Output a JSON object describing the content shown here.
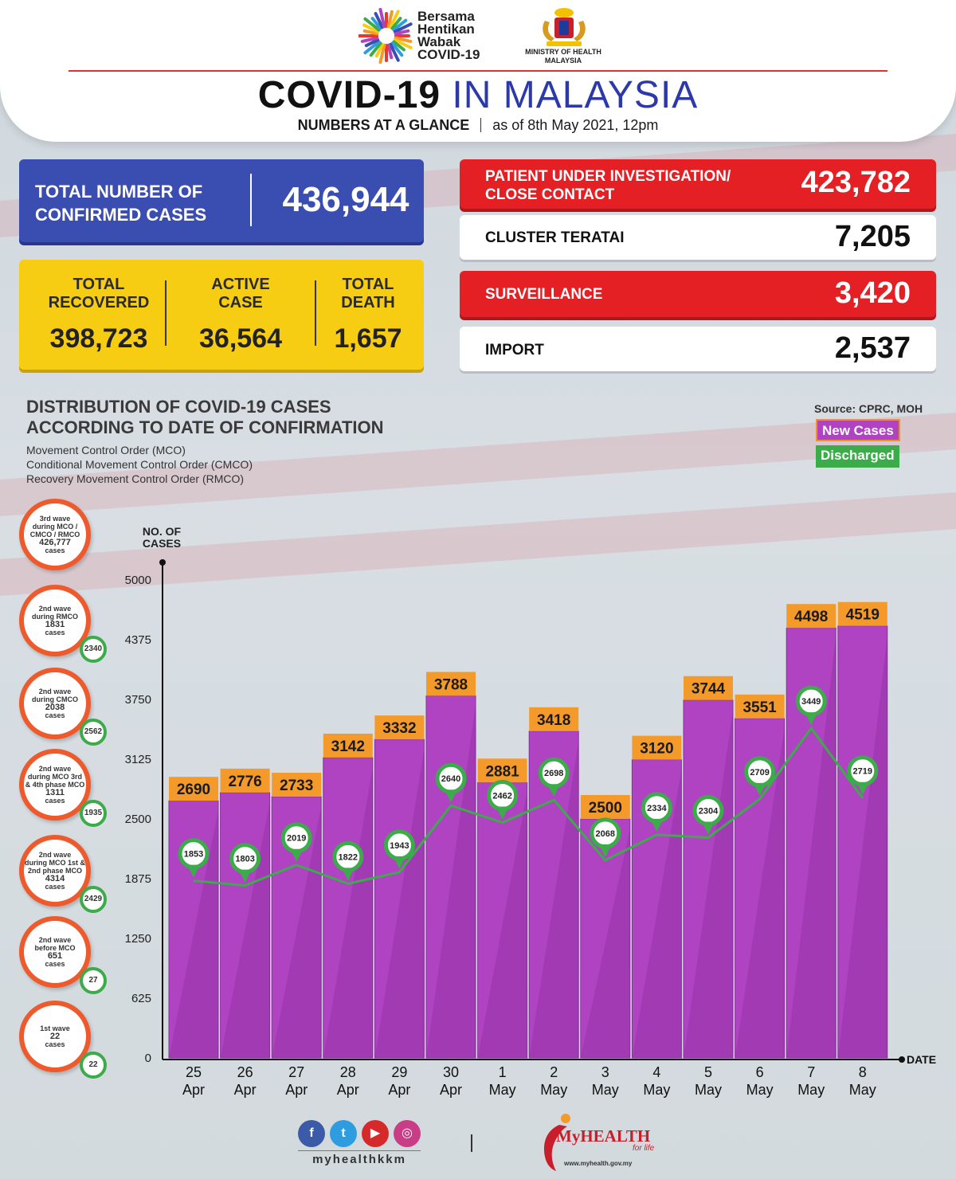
{
  "header": {
    "logo_lines": [
      "Bersama",
      "Hentikan",
      "Wabak",
      "COVID-19"
    ],
    "ministry_lines": [
      "MINISTRY OF HEALTH",
      "MALAYSIA"
    ],
    "title_part1": "COVID-19",
    "title_part2": "IN MALAYSIA",
    "subtitle_part1": "NUMBERS AT A GLANCE",
    "subtitle_part2": "as of 8th May 2021, 12pm"
  },
  "stats": {
    "confirmed_label_1": "TOTAL NUMBER OF",
    "confirmed_label_2": "CONFIRMED CASES",
    "confirmed_value": "436,944",
    "recovered_label_1": "TOTAL",
    "recovered_label_2": "RECOVERED",
    "recovered_value": "398,723",
    "active_label_1": "ACTIVE",
    "active_label_2": "CASE",
    "active_value": "36,564",
    "death_label_1": "TOTAL",
    "death_label_2": "DEATH",
    "death_value": "1,657",
    "pui_label_1": "PATIENT UNDER INVESTIGATION/",
    "pui_label_2": "CLOSE CONTACT",
    "pui_value": "423,782",
    "cluster_label": "CLUSTER TERATAI",
    "cluster_value": "7,205",
    "surveillance_label": "SURVEILLANCE",
    "surveillance_value": "3,420",
    "import_label": "IMPORT",
    "import_value": "2,537"
  },
  "distribution": {
    "title_1": "DISTRIBUTION OF COVID-19 CASES",
    "title_2": "ACCORDING TO DATE OF CONFIRMATION",
    "note_1": "Movement Control Order (MCO)",
    "note_2": "Conditional Movement Control Order (CMCO)",
    "note_3": "Recovery Movement Control Order (RMCO)",
    "source": "Source: CPRC, MOH",
    "legend_new": "New Cases",
    "legend_discharged": "Discharged"
  },
  "waves": [
    {
      "lines": [
        "3rd wave",
        "during MCO /",
        "CMCO / RMCO"
      ],
      "count": "426,777",
      "unit": "cases",
      "badge": ""
    },
    {
      "lines": [
        "2nd wave",
        "during RMCO"
      ],
      "count": "1831",
      "unit": "cases",
      "badge": "2340"
    },
    {
      "lines": [
        "2nd wave",
        "during CMCO"
      ],
      "count": "2038",
      "unit": "cases",
      "badge": "2562"
    },
    {
      "lines": [
        "2nd wave",
        "during MCO 3rd",
        "& 4th phase MCO"
      ],
      "count": "1311",
      "unit": "cases",
      "badge": "1935"
    },
    {
      "lines": [
        "2nd wave",
        "during MCO 1st &",
        "2nd phase MCO"
      ],
      "count": "4314",
      "unit": "cases",
      "badge": "2429"
    },
    {
      "lines": [
        "2nd wave",
        "before MCO"
      ],
      "count": "651",
      "unit": "cases",
      "badge": "27"
    },
    {
      "lines": [
        "1st wave"
      ],
      "count": "22",
      "unit": "cases",
      "badge": "22"
    }
  ],
  "chart_data": {
    "type": "bar",
    "ylabel": "NO. OF CASES",
    "xlabel": "DATE",
    "ylim": [
      0,
      5000
    ],
    "yticks": [
      0,
      625,
      1250,
      1875,
      2500,
      3125,
      3750,
      4375,
      5000
    ],
    "categories": [
      [
        "25",
        "Apr"
      ],
      [
        "26",
        "Apr"
      ],
      [
        "27",
        "Apr"
      ],
      [
        "28",
        "Apr"
      ],
      [
        "29",
        "Apr"
      ],
      [
        "30",
        "Apr"
      ],
      [
        "1",
        "May"
      ],
      [
        "2",
        "May"
      ],
      [
        "3",
        "May"
      ],
      [
        "4",
        "May"
      ],
      [
        "5",
        "May"
      ],
      [
        "6",
        "May"
      ],
      [
        "7",
        "May"
      ],
      [
        "8",
        "May"
      ]
    ],
    "series": [
      {
        "name": "New Cases",
        "type": "bar",
        "values": [
          2690,
          2776,
          2733,
          3142,
          3332,
          3788,
          2881,
          3418,
          2500,
          3120,
          3744,
          3551,
          4498,
          4519
        ]
      },
      {
        "name": "Discharged",
        "type": "line",
        "values": [
          1853,
          1803,
          2019,
          1822,
          1943,
          2640,
          2462,
          2698,
          2068,
          2334,
          2304,
          2709,
          3449,
          2719
        ]
      }
    ],
    "colors": {
      "bar": "#b043c2",
      "bar_top": "#f39a2a",
      "line": "#3cab4a"
    }
  },
  "footer": {
    "handle": "myhealthkkm",
    "brand": "MyHEALTH",
    "tagline": "for life",
    "url": "www.myhealth.gov.my",
    "social_icons": [
      "facebook-icon",
      "twitter-icon",
      "youtube-icon",
      "instagram-icon"
    ]
  }
}
